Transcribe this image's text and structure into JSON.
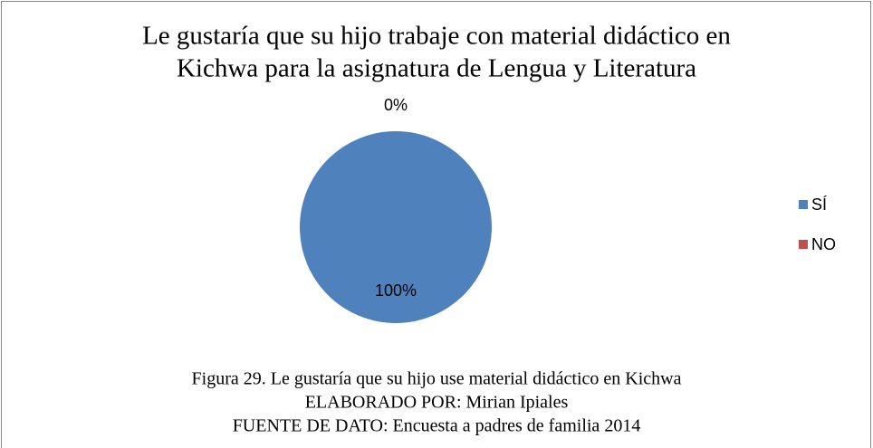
{
  "chart_data": {
    "type": "pie",
    "title": [
      "Le gustaría que su hijo trabaje con material didáctico en",
      "Kichwa para la asignatura de Lengua y Literatura"
    ],
    "categories": [
      "SÍ",
      "NO"
    ],
    "values": [
      100,
      0
    ],
    "value_labels": [
      "100%",
      "0%"
    ],
    "colors": [
      "#4f81bd",
      "#c0504d"
    ],
    "legend": "right"
  },
  "caption": [
    "Figura 29. Le gustaría que su hijo use material didáctico en Kichwa",
    "ELABORADO POR: Mirian Ipiales",
    "FUENTE DE DATO: Encuesta a padres de familia 2014"
  ]
}
